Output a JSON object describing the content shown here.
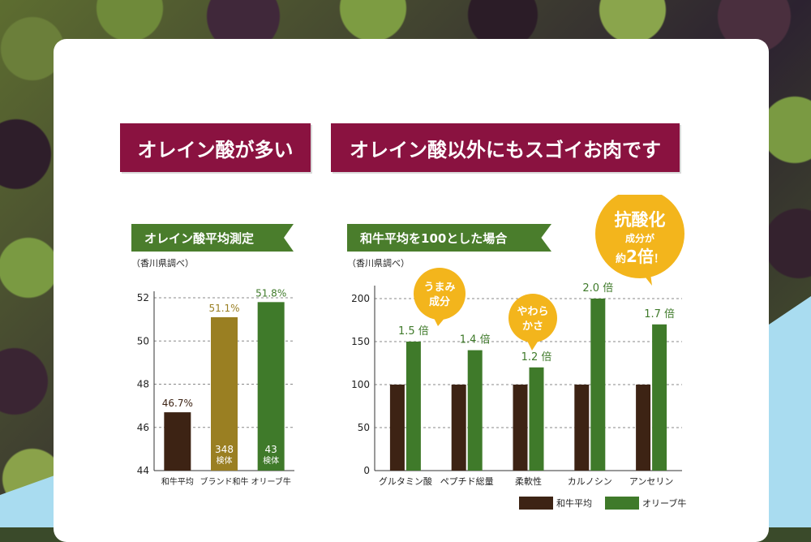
{
  "banners": {
    "left": "オレイン酸が多い",
    "right": "オレイン酸以外にもスゴイお肉です"
  },
  "left_panel": {
    "ribbon": "オレイン酸平均測定",
    "note": "（香川県調べ）"
  },
  "right_panel": {
    "ribbon": "和牛平均を100とした場合",
    "note": "（香川県調べ）",
    "bubbles": {
      "umami": [
        "うまみ",
        "成分"
      ],
      "soft": [
        "やわら",
        "かさ"
      ],
      "big": {
        "line1": "抗酸化",
        "line2": "成分が",
        "line3_a": "約",
        "line3_b": "2倍",
        "line3_c": "！"
      }
    }
  },
  "colors": {
    "maroon": "#8a1240",
    "green_ribbon": "#4a7d2c",
    "wagyu": "#3d2314",
    "brand": "#9a7f22",
    "olive": "#3f7a2a",
    "bubble": "#f3b51c"
  },
  "chart_data": [
    {
      "type": "bar",
      "categories": [
        "和牛平均",
        "ブランド和牛",
        "オリーブ牛"
      ],
      "values": [
        46.7,
        51.1,
        51.8
      ],
      "value_labels": [
        "46.7%",
        "51.1%",
        "51.8%"
      ],
      "sample_labels": [
        null,
        [
          "348",
          "検体"
        ],
        [
          "43",
          "検体"
        ]
      ],
      "bar_colors": [
        "#3d2314",
        "#9a7f22",
        "#3f7a2a"
      ],
      "label_colors": [
        "#3d2314",
        "#9a7f22",
        "#3f7a2a"
      ],
      "ylim": [
        44,
        52
      ],
      "yticks": [
        44,
        46,
        48,
        50,
        52
      ],
      "grid": true
    },
    {
      "type": "bar",
      "categories": [
        "グルタミン酸",
        "ペプチド総量",
        "柔軟性",
        "カルノシン",
        "アンセリン"
      ],
      "series": [
        {
          "name": "和牛平均",
          "values": [
            100,
            100,
            100,
            100,
            100
          ],
          "color": "#3d2314"
        },
        {
          "name": "オリーブ牛",
          "values": [
            150,
            140,
            120,
            200,
            170
          ],
          "color": "#3f7a2a"
        }
      ],
      "value_labels": [
        "1.5 倍",
        "1.4 倍",
        "1.2 倍",
        "2.0 倍",
        "1.7 倍"
      ],
      "ylim": [
        0,
        200
      ],
      "yticks": [
        0,
        50,
        100,
        150,
        200
      ],
      "grid": true,
      "legend_position": "bottom-right"
    }
  ]
}
